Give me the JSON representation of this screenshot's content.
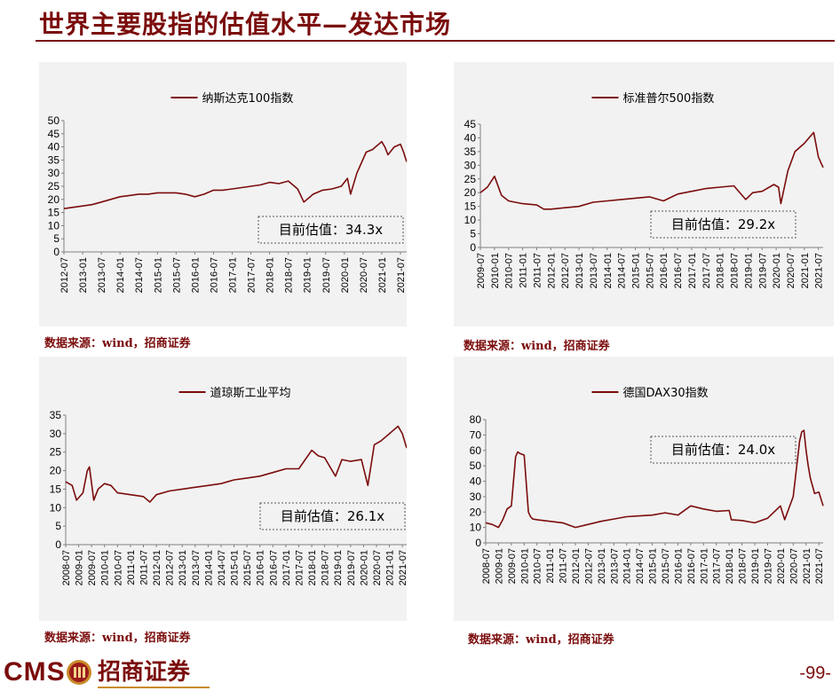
{
  "page": {
    "title": "世界主要股指的估值水平—发达市场",
    "page_number": "-99-",
    "logo_text": "CMS",
    "logo_name": "招商证券",
    "accent_color": "#7b0c0c",
    "panel_background": "#f2f2f2"
  },
  "chart_data": [
    {
      "type": "line",
      "title": "纳斯达克100指数",
      "source": "数据来源：wind，招商证券",
      "annotation": "目前估值：34.3x",
      "ylim": [
        0,
        50
      ],
      "yticks": [
        0,
        5,
        10,
        15,
        20,
        25,
        30,
        35,
        40,
        45,
        50
      ],
      "xlim": [
        "2012-07",
        "2021-09"
      ],
      "xticks": [
        "2012-07",
        "2013-01",
        "2013-07",
        "2014-01",
        "2014-07",
        "2015-01",
        "2015-07",
        "2016-01",
        "2016-07",
        "2017-01",
        "2017-07",
        "2018-01",
        "2018-07",
        "2019-01",
        "2019-07",
        "2020-01",
        "2020-07",
        "2021-01",
        "2021-07"
      ],
      "color": "#7b0c0c",
      "x": [
        "2012-07",
        "2012-10",
        "2013-01",
        "2013-04",
        "2013-07",
        "2013-10",
        "2014-01",
        "2014-04",
        "2014-07",
        "2014-10",
        "2015-01",
        "2015-04",
        "2015-07",
        "2015-10",
        "2016-01",
        "2016-04",
        "2016-07",
        "2016-10",
        "2017-01",
        "2017-04",
        "2017-07",
        "2017-10",
        "2018-01",
        "2018-04",
        "2018-07",
        "2018-10",
        "2018-12",
        "2019-03",
        "2019-06",
        "2019-09",
        "2019-12",
        "2020-02",
        "2020-03",
        "2020-05",
        "2020-08",
        "2020-10",
        "2021-01",
        "2021-02",
        "2021-03",
        "2021-05",
        "2021-07",
        "2021-08",
        "2021-09"
      ],
      "values": [
        16.5,
        17.0,
        17.5,
        18.0,
        19.0,
        20.0,
        21.0,
        21.5,
        22.0,
        22.0,
        22.5,
        22.5,
        22.5,
        22.0,
        21.0,
        22.0,
        23.5,
        23.5,
        24.0,
        24.5,
        25.0,
        25.5,
        26.5,
        26.0,
        27.0,
        24.0,
        19.0,
        22.0,
        23.5,
        24.0,
        25.0,
        28.0,
        22.0,
        30.0,
        38.0,
        39.0,
        42.0,
        40.0,
        37.0,
        40.0,
        41.0,
        38.0,
        34.3
      ]
    },
    {
      "type": "line",
      "title": "标准普尔500指数",
      "source": "数据来源：wind，招商证券",
      "annotation": "目前估值：29.2x",
      "ylim": [
        0,
        45
      ],
      "yticks": [
        0,
        5,
        10,
        15,
        20,
        25,
        30,
        35,
        40,
        45
      ],
      "xlim": [
        "2009-07",
        "2021-09"
      ],
      "xticks": [
        "2009-07",
        "2010-01",
        "2010-07",
        "2011-01",
        "2011-07",
        "2012-01",
        "2012-07",
        "2013-01",
        "2013-07",
        "2014-01",
        "2014-07",
        "2015-01",
        "2015-07",
        "2016-01",
        "2016-07",
        "2017-01",
        "2017-07",
        "2018-01",
        "2018-07",
        "2019-01",
        "2019-07",
        "2020-01",
        "2020-07",
        "2021-01",
        "2021-07"
      ],
      "color": "#7b0c0c",
      "x": [
        "2009-07",
        "2009-10",
        "2010-01",
        "2010-04",
        "2010-07",
        "2011-01",
        "2011-07",
        "2011-10",
        "2012-01",
        "2012-07",
        "2013-01",
        "2013-07",
        "2014-01",
        "2014-07",
        "2015-01",
        "2015-07",
        "2016-01",
        "2016-07",
        "2017-01",
        "2017-07",
        "2018-01",
        "2018-07",
        "2018-12",
        "2019-03",
        "2019-07",
        "2019-12",
        "2020-02",
        "2020-03",
        "2020-06",
        "2020-09",
        "2021-01",
        "2021-03",
        "2021-05",
        "2021-07",
        "2021-08",
        "2021-09"
      ],
      "values": [
        20.0,
        22.0,
        26.0,
        19.0,
        17.0,
        16.0,
        15.5,
        14.0,
        14.0,
        14.5,
        15.0,
        16.5,
        17.0,
        17.5,
        18.0,
        18.5,
        17.0,
        19.5,
        20.5,
        21.5,
        22.0,
        22.5,
        17.5,
        20.0,
        20.5,
        23.0,
        22.0,
        16.0,
        28.0,
        35.0,
        38.0,
        40.0,
        42.0,
        33.0,
        31.0,
        29.2
      ]
    },
    {
      "type": "line",
      "title": "道琼斯工业平均",
      "source": "数据来源：wind，招商证券",
      "annotation": "目前估值：26.1x",
      "ylim": [
        0,
        35
      ],
      "yticks": [
        0,
        5,
        10,
        15,
        20,
        25,
        30,
        35
      ],
      "xlim": [
        "2008-07",
        "2021-09"
      ],
      "xticks": [
        "2008-07",
        "2009-01",
        "2009-07",
        "2010-01",
        "2010-07",
        "2011-01",
        "2011-07",
        "2012-01",
        "2012-07",
        "2013-01",
        "2013-07",
        "2014-01",
        "2014-07",
        "2015-01",
        "2015-07",
        "2016-01",
        "2016-07",
        "2017-01",
        "2017-07",
        "2018-01",
        "2018-07",
        "2019-01",
        "2019-07",
        "2020-01",
        "2020-07",
        "2021-01",
        "2021-07"
      ],
      "color": "#7b0c0c",
      "x": [
        "2008-07",
        "2008-10",
        "2008-12",
        "2009-03",
        "2009-05",
        "2009-06",
        "2009-08",
        "2009-10",
        "2010-01",
        "2010-04",
        "2010-07",
        "2011-01",
        "2011-07",
        "2011-10",
        "2012-01",
        "2012-07",
        "2013-01",
        "2013-07",
        "2014-01",
        "2014-07",
        "2015-01",
        "2015-07",
        "2016-01",
        "2016-07",
        "2017-01",
        "2017-07",
        "2018-01",
        "2018-04",
        "2018-07",
        "2018-12",
        "2019-03",
        "2019-07",
        "2019-12",
        "2020-03",
        "2020-06",
        "2020-09",
        "2021-01",
        "2021-03",
        "2021-05",
        "2021-07",
        "2021-09"
      ],
      "values": [
        17.0,
        16.0,
        12.0,
        14.0,
        20.0,
        21.0,
        12.0,
        15.0,
        16.5,
        16.0,
        14.0,
        13.5,
        13.0,
        11.5,
        13.5,
        14.5,
        15.0,
        15.5,
        16.0,
        16.5,
        17.5,
        18.0,
        18.5,
        19.5,
        20.5,
        20.5,
        25.5,
        24.0,
        23.5,
        18.5,
        23.0,
        22.5,
        23.0,
        16.0,
        27.0,
        28.0,
        30.0,
        31.0,
        32.0,
        30.0,
        26.1
      ]
    },
    {
      "type": "line",
      "title": "德国DAX30指数",
      "source": "数据来源：wind，招商证券",
      "annotation": "目前估值：24.0x",
      "ylim": [
        0,
        80
      ],
      "yticks": [
        0,
        10,
        20,
        30,
        40,
        50,
        60,
        70,
        80
      ],
      "xlim": [
        "2008-07",
        "2021-09"
      ],
      "xticks": [
        "2008-07",
        "2009-01",
        "2009-07",
        "2010-01",
        "2010-07",
        "2011-01",
        "2011-07",
        "2012-01",
        "2012-07",
        "2013-01",
        "2013-07",
        "2014-01",
        "2014-07",
        "2015-01",
        "2015-07",
        "2016-01",
        "2016-07",
        "2017-01",
        "2017-07",
        "2018-01",
        "2018-07",
        "2019-01",
        "2019-07",
        "2020-01",
        "2020-07",
        "2021-01",
        "2021-07"
      ],
      "color": "#7b0c0c",
      "x": [
        "2008-07",
        "2008-10",
        "2009-01",
        "2009-03",
        "2009-05",
        "2009-07",
        "2009-09",
        "2009-10",
        "2009-11",
        "2010-01",
        "2010-03",
        "2010-04",
        "2010-05",
        "2010-07",
        "2011-01",
        "2011-07",
        "2012-01",
        "2012-07",
        "2013-01",
        "2013-07",
        "2014-01",
        "2014-07",
        "2015-01",
        "2015-07",
        "2016-01",
        "2016-07",
        "2017-01",
        "2017-07",
        "2018-01",
        "2018-02",
        "2018-07",
        "2019-01",
        "2019-07",
        "2020-01",
        "2020-03",
        "2020-07",
        "2020-10",
        "2020-11",
        "2020-12",
        "2021-01",
        "2021-02",
        "2021-03",
        "2021-05",
        "2021-07",
        "2021-09"
      ],
      "values": [
        13.0,
        12.0,
        10.0,
        15.0,
        22.0,
        24.0,
        56.0,
        59.0,
        58.0,
        57.0,
        20.0,
        17.0,
        15.5,
        15.0,
        14.0,
        13.0,
        10.0,
        12.0,
        14.0,
        15.5,
        17.0,
        17.5,
        18.0,
        19.5,
        18.0,
        24.0,
        22.0,
        20.5,
        21.0,
        15.0,
        14.5,
        13.0,
        16.0,
        24.0,
        15.0,
        30.0,
        66.0,
        72.0,
        73.0,
        60.0,
        50.0,
        42.0,
        32.0,
        33.0,
        24.0
      ]
    }
  ]
}
